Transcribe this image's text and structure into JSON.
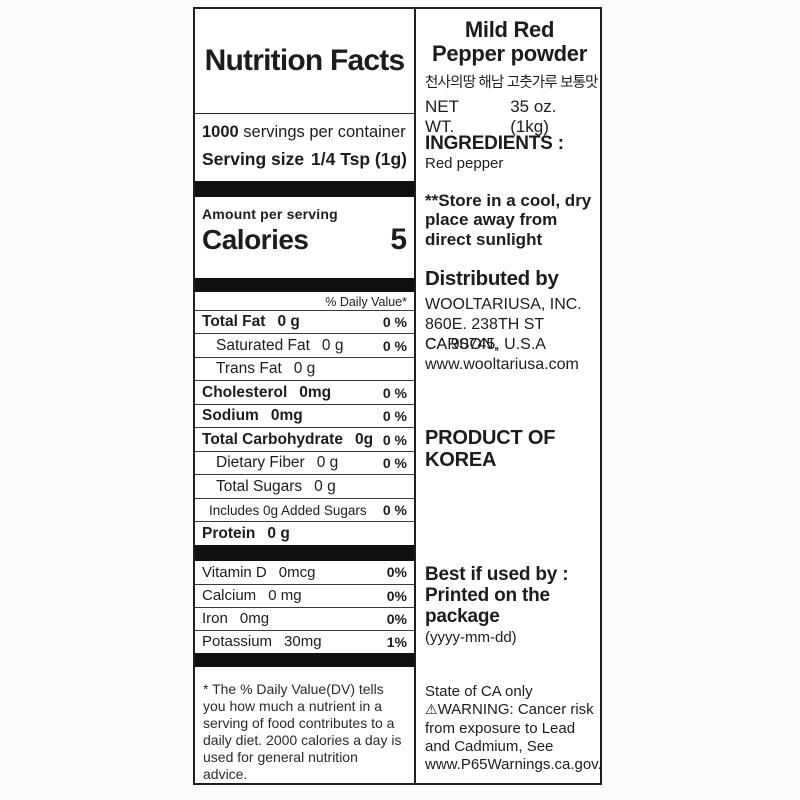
{
  "product": {
    "name_line1": "Mild Red",
    "name_line2": "Pepper powder",
    "korean_name": "천사의땅 해남 고춧가루 보통맛",
    "net_wt_label": "NET WT.",
    "net_wt_value": "35 oz. (1kg)"
  },
  "nutrition": {
    "title": "Nutrition Facts",
    "servings_count": "1000",
    "servings_text": " servings per container",
    "serving_size_label": "Serving size",
    "serving_size_value": "1/4 Tsp (1g)",
    "amount_label": "Amount per serving",
    "calories_label": "Calories",
    "calories_value": "5",
    "daily_value_header": "% Daily Value*",
    "rows": [
      {
        "label": "Total Fat",
        "amount": "0 g",
        "dv": "0 %",
        "bold": true,
        "indent": 0
      },
      {
        "label": "Saturated Fat",
        "amount": "0 g",
        "dv": "0 %",
        "bold": false,
        "indent": 1
      },
      {
        "label": "Trans Fat",
        "amount": "0 g",
        "dv": "",
        "bold": false,
        "indent": 1
      },
      {
        "label": "Cholesterol",
        "amount": "0mg",
        "dv": "0 %",
        "bold": true,
        "indent": 0
      },
      {
        "label": "Sodium",
        "amount": "0mg",
        "dv": "0 %",
        "bold": true,
        "indent": 0
      },
      {
        "label": "Total Carbohydrate",
        "amount": "0g",
        "dv": "0 %",
        "bold": true,
        "indent": 0
      },
      {
        "label": "Dietary Fiber",
        "amount": "0 g",
        "dv": "0 %",
        "bold": false,
        "indent": 1
      },
      {
        "label": "Total Sugars",
        "amount": "0 g",
        "dv": "",
        "bold": false,
        "indent": 1
      },
      {
        "label": "Includes 0g Added Sugars",
        "amount": "",
        "dv": "0 %",
        "bold": false,
        "indent": 2
      },
      {
        "label": "Protein",
        "amount": "0 g",
        "dv": "",
        "bold": true,
        "indent": 0
      }
    ],
    "vitamin_rows": [
      {
        "label": "Vitamin D",
        "amount": "0mcg",
        "dv": "0%"
      },
      {
        "label": "Calcium",
        "amount": "0 mg",
        "dv": "0%"
      },
      {
        "label": "Iron",
        "amount": "0mg",
        "dv": "0%"
      },
      {
        "label": "Potassium",
        "amount": "30mg",
        "dv": "1%"
      }
    ],
    "footnote": "* The % Daily Value(DV) tells you how much a nutrient in a serving of food contributes to a daily diet. 2000 calories a day is used for general nutrition advice."
  },
  "info": {
    "ingredients_label": "INGREDIENTS :",
    "ingredients_value": "Red pepper",
    "storage": "**Store in a cool, dry place away from direct sunlight",
    "distributed_label": "Distributed by",
    "distributor_lines": [
      "WOOLTARIUSA, INC.",
      "860E. 238TH ST CARSON,",
      "CA 90745, U.S.A",
      "www.wooltariusa.com"
    ],
    "origin": "PRODUCT OF KOREA",
    "best_by": "Best if used by : Printed on the package",
    "date_format": "(yyyy-mm-dd)",
    "ca_notice": "State of CA only",
    "warning_icon": "⚠",
    "warning_text": "WARNING: Cancer risk from exposure to Lead and Cadmium, See www.P65Warnings.ca.gov."
  }
}
